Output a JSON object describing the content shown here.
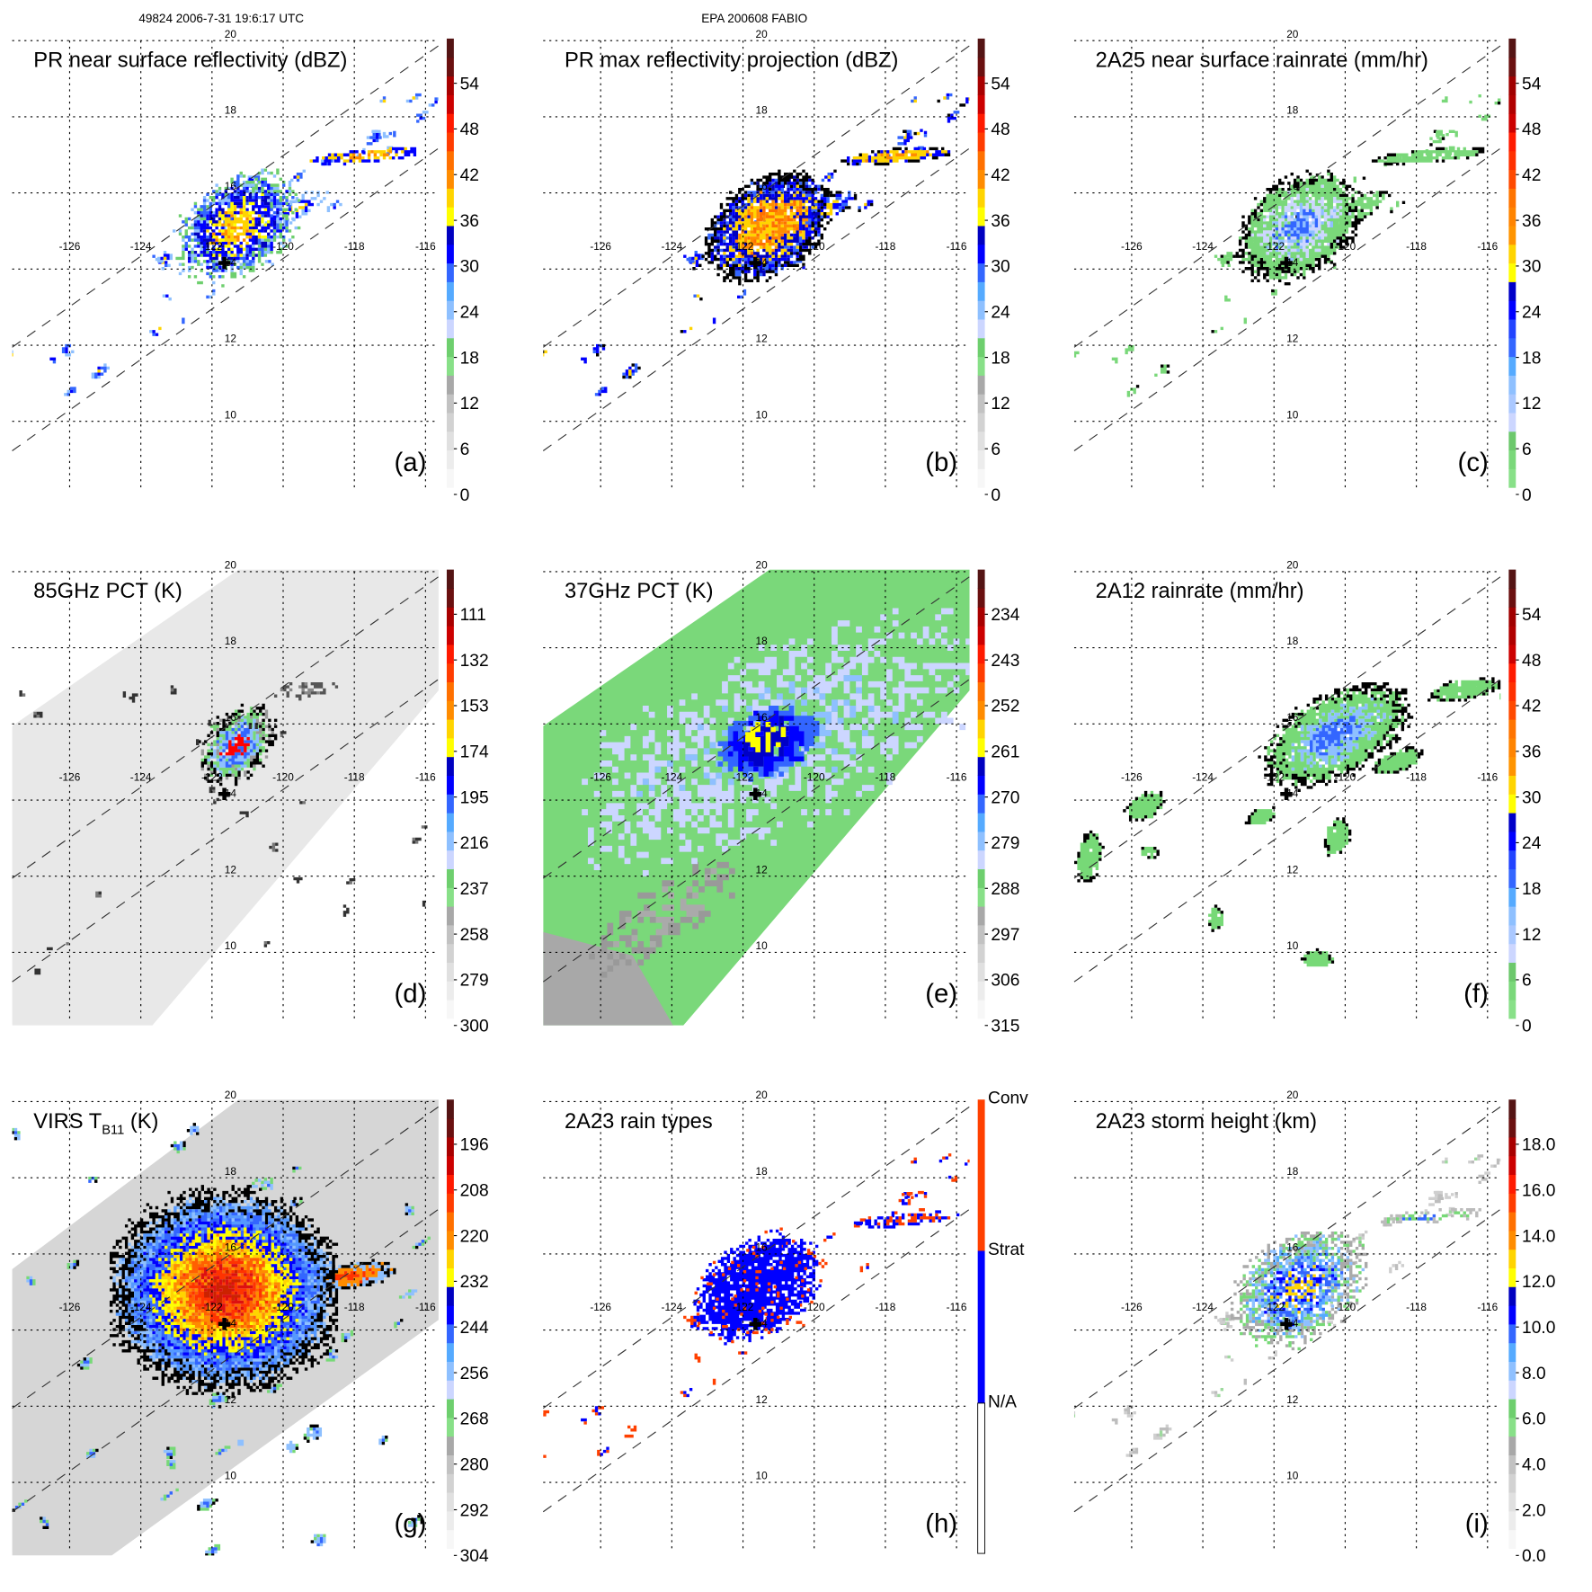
{
  "header": {
    "orbit_time": "49824 2006-7-31 19:6:17 UTC",
    "storm": "EPA 200608 FABIO"
  },
  "map": {
    "lon_labels": [
      "-126",
      "-124",
      "-122",
      "-120",
      "-118",
      "-116"
    ],
    "lat_labels": [
      "20",
      "18",
      "16",
      "14",
      "12",
      "10"
    ]
  },
  "panels": [
    {
      "id": "a",
      "title": "PR near surface reflectivity (dBZ)",
      "letter": "(a)",
      "colorbar_ticks": [
        "0",
        "6",
        "12",
        "18",
        "24",
        "30",
        "36",
        "42",
        "48",
        "54"
      ]
    },
    {
      "id": "b",
      "title": "PR max reflectivity projection (dBZ)",
      "letter": "(b)",
      "colorbar_ticks": [
        "0",
        "6",
        "12",
        "18",
        "24",
        "30",
        "36",
        "42",
        "48",
        "54"
      ]
    },
    {
      "id": "c",
      "title": "2A25 near surface rainrate (mm/hr)",
      "letter": "(c)",
      "colorbar_ticks": [
        "0",
        "6",
        "12",
        "18",
        "24",
        "30",
        "36",
        "42",
        "48",
        "54"
      ]
    },
    {
      "id": "d",
      "title": "85GHz PCT (K)",
      "letter": "(d)",
      "colorbar_ticks": [
        "300",
        "279",
        "258",
        "237",
        "216",
        "195",
        "174",
        "153",
        "132",
        "111"
      ]
    },
    {
      "id": "e",
      "title": "37GHz PCT (K)",
      "letter": "(e)",
      "colorbar_ticks": [
        "315",
        "306",
        "297",
        "288",
        "279",
        "270",
        "261",
        "252",
        "243",
        "234"
      ]
    },
    {
      "id": "f",
      "title": "2A12 rainrate (mm/hr)",
      "letter": "(f)",
      "colorbar_ticks": [
        "0",
        "6",
        "12",
        "18",
        "24",
        "30",
        "36",
        "42",
        "48",
        "54"
      ]
    },
    {
      "id": "g",
      "title": "VIRS T",
      "title_sub": "B11",
      "title_suffix": " (K)",
      "letter": "(g)",
      "colorbar_ticks": [
        "304",
        "292",
        "280",
        "268",
        "256",
        "244",
        "232",
        "220",
        "208",
        "196"
      ]
    },
    {
      "id": "h",
      "title": "2A23 rain types",
      "letter": "(h)",
      "colorbar_ticks": [
        "N/A",
        "Strat",
        "Conv"
      ]
    },
    {
      "id": "i",
      "title": "2A23 storm height (km)",
      "letter": "(i)",
      "colorbar_ticks": [
        "0.0",
        "2.0",
        "4.0",
        "6.0",
        "8.0",
        "10.0",
        "12.0",
        "14.0",
        "16.0",
        "18.0"
      ]
    }
  ],
  "colors": {
    "conv": "#ff4000",
    "strat": "#0000ff",
    "na": "#ffffff"
  }
}
